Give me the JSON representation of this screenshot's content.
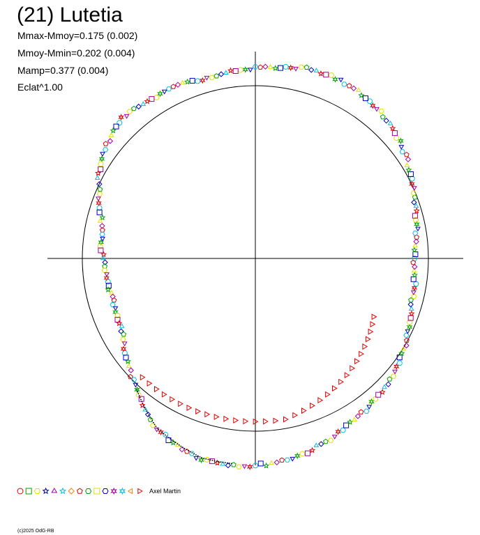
{
  "header": {
    "title": "(21) Lutetia",
    "stats": [
      "Mmax-Mmoy=0.175 (0.002)",
      "Mmoy-Mmin=0.202 (0.004)",
      "Mamp=0.377 (0.004)",
      "Eclat^1.00"
    ]
  },
  "legend": {
    "observer": "Axel Martin",
    "colors": [
      "#e00000",
      "#00a000",
      "#e0e000",
      "#0000c0",
      "#a000a0",
      "#00c0e0",
      "#ff8000",
      "#e00000",
      "#00a000",
      "#e0e000",
      "#0000c0",
      "#a000a0",
      "#00c0e0",
      "#ff8000",
      "#e00000"
    ]
  },
  "footer": {
    "copyright": "(c)2025 OdG-RB"
  },
  "colors": {
    "circle": "#000000",
    "axes": "#000000",
    "main_series": [
      "#00c0e0",
      "#0000c0",
      "#00a000",
      "#e0e000",
      "#a000a0",
      "#e00000"
    ],
    "highlight_series": "#e00000"
  },
  "chart_data": {
    "type": "scatter",
    "projection": "polar",
    "reference_circle_radius": 1.0,
    "title": "(21) Lutetia",
    "main_curve": [
      {
        "angle_deg": 0,
        "r": 0.92
      },
      {
        "angle_deg": 15,
        "r": 0.96
      },
      {
        "angle_deg": 30,
        "r": 1.03
      },
      {
        "angle_deg": 45,
        "r": 1.1
      },
      {
        "angle_deg": 60,
        "r": 1.14
      },
      {
        "angle_deg": 75,
        "r": 1.14
      },
      {
        "angle_deg": 90,
        "r": 1.1
      },
      {
        "angle_deg": 105,
        "r": 1.08
      },
      {
        "angle_deg": 120,
        "r": 1.1
      },
      {
        "angle_deg": 135,
        "r": 1.12
      },
      {
        "angle_deg": 150,
        "r": 1.04
      },
      {
        "angle_deg": 165,
        "r": 0.92
      },
      {
        "angle_deg": 180,
        "r": 0.88
      },
      {
        "angle_deg": 195,
        "r": 0.86
      },
      {
        "angle_deg": 210,
        "r": 0.88
      },
      {
        "angle_deg": 225,
        "r": 1.0
      },
      {
        "angle_deg": 240,
        "r": 1.14
      },
      {
        "angle_deg": 255,
        "r": 1.2
      },
      {
        "angle_deg": 270,
        "r": 1.2
      },
      {
        "angle_deg": 285,
        "r": 1.16
      },
      {
        "angle_deg": 300,
        "r": 1.1
      },
      {
        "angle_deg": 315,
        "r": 1.06
      },
      {
        "angle_deg": 330,
        "r": 1.0
      },
      {
        "angle_deg": 345,
        "r": 0.94
      },
      {
        "angle_deg": 360,
        "r": 0.92
      }
    ],
    "highlight_arc": {
      "start_deg": 228,
      "end_deg": 331,
      "r_start": 0.98,
      "r_mid": 1.04,
      "r_end": 0.78,
      "offset_y": 0.09
    }
  }
}
